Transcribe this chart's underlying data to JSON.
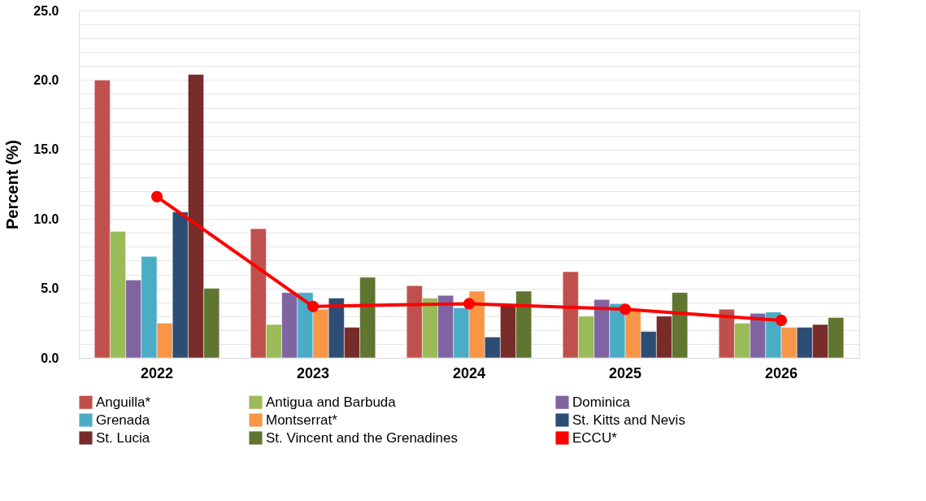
{
  "chart_data": {
    "type": "bar",
    "ylabel": "Percent (%)",
    "categories": [
      "2022",
      "2023",
      "2024",
      "2025",
      "2026"
    ],
    "series": [
      {
        "name": "Anguilla*",
        "color": "#c0504d",
        "values": [
          20.0,
          9.3,
          5.2,
          6.2,
          3.5
        ]
      },
      {
        "name": "Antigua and Barbuda",
        "color": "#9bbb59",
        "values": [
          9.1,
          2.4,
          4.3,
          3.0,
          2.5
        ]
      },
      {
        "name": "Dominica",
        "color": "#8064a2",
        "values": [
          5.6,
          4.7,
          4.5,
          4.2,
          3.2
        ]
      },
      {
        "name": "Grenada",
        "color": "#4bacc6",
        "values": [
          7.3,
          4.7,
          3.6,
          3.9,
          3.3
        ]
      },
      {
        "name": "Montserrat*",
        "color": "#f79646",
        "values": [
          2.5,
          3.5,
          4.8,
          3.4,
          2.2
        ]
      },
      {
        "name": "St. Kitts and Nevis",
        "color": "#2c4d75",
        "values": [
          10.5,
          4.3,
          1.5,
          1.9,
          2.2
        ]
      },
      {
        "name": "St. Lucia",
        "color": "#772c2a",
        "values": [
          20.4,
          2.2,
          3.8,
          3.0,
          2.4
        ]
      },
      {
        "name": "St. Vincent and the Grenadines",
        "color": "#5f7530",
        "values": [
          5.0,
          5.8,
          4.8,
          4.7,
          2.9
        ]
      },
      {
        "name": "ECCU*",
        "color": "#ff0000",
        "type": "line",
        "marker": "circle",
        "values": [
          11.6,
          3.7,
          3.9,
          3.5,
          2.7
        ]
      }
    ],
    "ylim": [
      0,
      25
    ],
    "yticks": [
      {
        "value": 0,
        "label": "0.0"
      },
      {
        "value": 1,
        "label": null
      },
      {
        "value": 2,
        "label": null
      },
      {
        "value": 3,
        "label": null
      },
      {
        "value": 4,
        "label": null
      },
      {
        "value": 5,
        "label": "5.0"
      },
      {
        "value": 6,
        "label": null
      },
      {
        "value": 7,
        "label": null
      },
      {
        "value": 8,
        "label": null
      },
      {
        "value": 9,
        "label": null
      },
      {
        "value": 10,
        "label": "10.0"
      },
      {
        "value": 11,
        "label": null
      },
      {
        "value": 12,
        "label": null
      },
      {
        "value": 13,
        "label": null
      },
      {
        "value": 14,
        "label": null
      },
      {
        "value": 15,
        "label": "15.0"
      },
      {
        "value": 16,
        "label": null
      },
      {
        "value": 17,
        "label": null
      },
      {
        "value": 18,
        "label": null
      },
      {
        "value": 19,
        "label": null
      },
      {
        "value": 20,
        "label": "20.0"
      },
      {
        "value": 21,
        "label": null
      },
      {
        "value": 22,
        "label": null
      },
      {
        "value": 23,
        "label": null
      },
      {
        "value": 24,
        "label": null
      },
      {
        "value": 25,
        "label": "25.0"
      }
    ],
    "grid": "y",
    "legend": "bottom"
  }
}
